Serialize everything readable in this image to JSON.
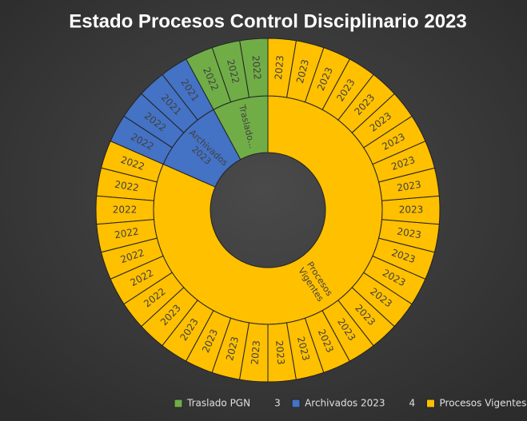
{
  "chart_data": {
    "type": "sunburst",
    "title": "Estado Procesos Control Disciplinario 2023",
    "groups": [
      {
        "name": "Traslado PGN",
        "color": "#70ad47",
        "value": 3,
        "ring_label": [
          "Traslado..."
        ]
      },
      {
        "name": "Archivados 2023",
        "color": "#4472c4",
        "value": 4,
        "ring_label": [
          "Archivados",
          "2023"
        ]
      },
      {
        "name": "Procesos Vigentes",
        "color": "#ffc000",
        "value": 31,
        "ring_label": [
          "Procesos",
          "Vigentes"
        ]
      }
    ],
    "outer": {
      "labels": [
        "2022",
        "2022",
        "2022",
        "2021",
        "2021",
        "2022",
        "2022",
        "2022",
        "2022",
        "2022",
        "2022",
        "2022",
        "2022",
        "2022",
        "2023",
        "2023",
        "2023",
        "2023",
        "2023",
        "2023",
        "2023",
        "2023",
        "2023",
        "2023",
        "2023",
        "2023",
        "2023",
        "2023",
        "2023",
        "2023",
        "2023",
        "2023",
        "2023",
        "2023",
        "2023",
        "2023",
        "2023",
        "2023"
      ],
      "values": [
        1,
        1,
        1,
        1,
        1,
        1,
        1,
        1,
        1,
        1,
        1,
        1,
        1,
        1,
        1,
        1,
        1,
        1,
        1,
        1,
        1,
        1,
        1,
        1,
        1,
        1,
        1,
        1,
        1,
        1,
        1,
        1,
        1,
        1,
        1,
        1,
        1,
        1
      ],
      "group_index": [
        0,
        0,
        0,
        1,
        1,
        1,
        1,
        2,
        2,
        2,
        2,
        2,
        2,
        2,
        2,
        2,
        2,
        2,
        2,
        2,
        2,
        2,
        2,
        2,
        2,
        2,
        2,
        2,
        2,
        2,
        2,
        2,
        2,
        2,
        2,
        2,
        2,
        2
      ]
    },
    "legend": "bottom"
  }
}
